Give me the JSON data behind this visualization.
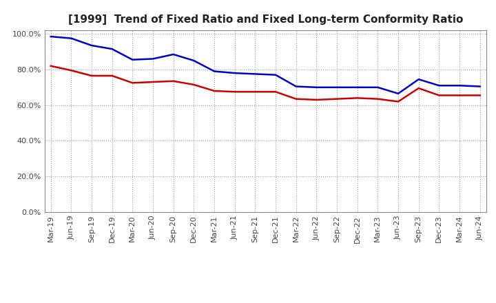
{
  "title": "[1999]  Trend of Fixed Ratio and Fixed Long-term Conformity Ratio",
  "labels": [
    "Mar-19",
    "Jun-19",
    "Sep-19",
    "Dec-19",
    "Mar-20",
    "Jun-20",
    "Sep-20",
    "Dec-20",
    "Mar-21",
    "Jun-21",
    "Sep-21",
    "Dec-21",
    "Mar-22",
    "Jun-22",
    "Sep-22",
    "Dec-22",
    "Mar-23",
    "Jun-23",
    "Sep-23",
    "Dec-23",
    "Mar-24",
    "Jun-24"
  ],
  "fixed_ratio": [
    98.5,
    97.5,
    93.5,
    91.5,
    85.5,
    86.0,
    88.5,
    85.0,
    79.0,
    78.0,
    77.5,
    77.0,
    70.5,
    70.0,
    70.0,
    70.0,
    70.0,
    66.5,
    74.5,
    71.0,
    71.0,
    70.5
  ],
  "fixed_lt_conformity": [
    82.0,
    79.5,
    76.5,
    76.5,
    72.5,
    73.0,
    73.5,
    71.5,
    68.0,
    67.5,
    67.5,
    67.5,
    63.5,
    63.0,
    63.5,
    64.0,
    63.5,
    62.0,
    69.5,
    65.5,
    65.5,
    65.5
  ],
  "fixed_ratio_color": "#0000cc",
  "fixed_lt_color": "#cc0000",
  "ylim": [
    0,
    102
  ],
  "yticks": [
    0.0,
    20.0,
    40.0,
    60.0,
    80.0,
    100.0
  ],
  "background_color": "#ffffff",
  "grid_color": "#999999",
  "title_fontsize": 11,
  "tick_fontsize": 8,
  "legend_fontsize": 9
}
